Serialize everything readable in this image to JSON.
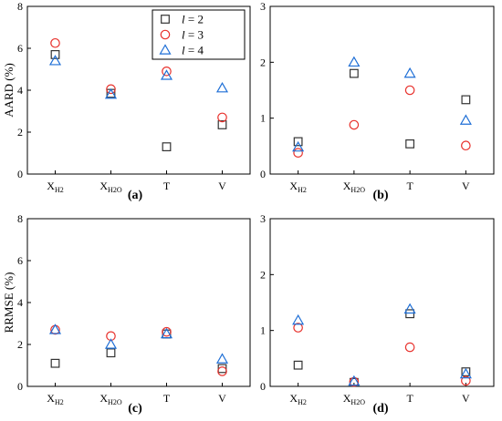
{
  "categories": [
    "X_H2",
    "X_H2O",
    "T",
    "V"
  ],
  "series_styles": [
    {
      "name": "l = 2",
      "marker": "square",
      "color": "#333333"
    },
    {
      "name": "l = 3",
      "marker": "circle",
      "color": "#e8322d"
    },
    {
      "name": "l = 4",
      "marker": "triangle",
      "color": "#1f6fd6"
    }
  ],
  "legend": {
    "placement": "top-center",
    "entries": [
      {
        "italic": "l",
        "rest": " = 2"
      },
      {
        "italic": "l",
        "rest": " = 3"
      },
      {
        "italic": "l",
        "rest": " = 4"
      }
    ]
  },
  "chart_data": [
    {
      "type": "scatter",
      "panel_label": "(a)",
      "ylabel": "AARD (%)",
      "ylim": [
        0,
        8
      ],
      "yticks": [
        0,
        2,
        4,
        6,
        8
      ],
      "show_legend": true,
      "categories": [
        "X_H2",
        "X_H2O",
        "T",
        "V"
      ],
      "series": [
        {
          "name": "l = 2",
          "values": [
            5.7,
            3.85,
            1.3,
            2.35
          ]
        },
        {
          "name": "l = 3",
          "values": [
            6.25,
            4.05,
            4.9,
            2.7
          ]
        },
        {
          "name": "l = 4",
          "values": [
            5.4,
            3.8,
            4.7,
            4.1
          ]
        }
      ]
    },
    {
      "type": "scatter",
      "panel_label": "(b)",
      "ylabel": "",
      "ylim": [
        0,
        3
      ],
      "yticks": [
        0,
        1,
        2,
        3
      ],
      "show_legend": false,
      "categories": [
        "X_H2",
        "X_H2O",
        "T",
        "V"
      ],
      "series": [
        {
          "name": "l = 2",
          "values": [
            0.58,
            1.8,
            0.54,
            1.33
          ]
        },
        {
          "name": "l = 3",
          "values": [
            0.38,
            0.88,
            1.5,
            0.51
          ]
        },
        {
          "name": "l = 4",
          "values": [
            0.48,
            2.0,
            1.8,
            0.96
          ]
        }
      ]
    },
    {
      "type": "scatter",
      "panel_label": "(c)",
      "ylabel": "RRMSE (%)",
      "ylim": [
        0,
        8
      ],
      "yticks": [
        0,
        2,
        4,
        6,
        8
      ],
      "show_legend": false,
      "categories": [
        "X_H2",
        "X_H2O",
        "T",
        "V"
      ],
      "series": [
        {
          "name": "l = 2",
          "values": [
            1.1,
            1.6,
            2.5,
            0.85
          ]
        },
        {
          "name": "l = 3",
          "values": [
            2.7,
            2.4,
            2.6,
            0.72
          ]
        },
        {
          "name": "l = 4",
          "values": [
            2.7,
            2.0,
            2.5,
            1.3
          ]
        }
      ]
    },
    {
      "type": "scatter",
      "panel_label": "(d)",
      "ylabel": "",
      "ylim": [
        0,
        3
      ],
      "yticks": [
        0,
        1,
        2,
        3
      ],
      "show_legend": false,
      "categories": [
        "X_H2",
        "X_H2O",
        "T",
        "V"
      ],
      "series": [
        {
          "name": "l = 2",
          "values": [
            0.38,
            0.07,
            1.3,
            0.26
          ]
        },
        {
          "name": "l = 3",
          "values": [
            1.05,
            0.08,
            0.7,
            0.1
          ]
        },
        {
          "name": "l = 4",
          "values": [
            1.18,
            0.09,
            1.38,
            0.22
          ]
        }
      ]
    }
  ]
}
